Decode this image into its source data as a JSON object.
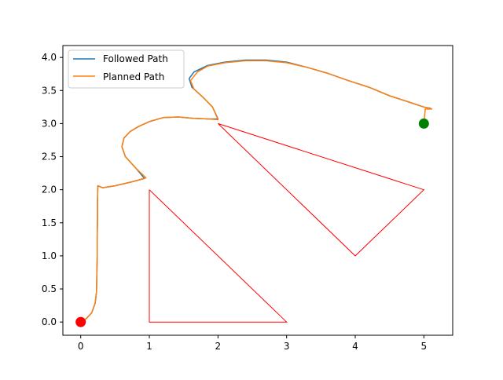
{
  "chart_data": {
    "type": "line",
    "title": "",
    "xlabel": "",
    "ylabel": "",
    "xlim": [
      -0.26,
      5.42
    ],
    "ylim": [
      -0.2,
      4.18
    ],
    "x_ticks": [
      0,
      1,
      2,
      3,
      4,
      5
    ],
    "y_ticks": [
      0.0,
      0.5,
      1.0,
      1.5,
      2.0,
      2.5,
      3.0,
      3.5,
      4.0
    ],
    "x_tick_labels": [
      "0",
      "1",
      "2",
      "3",
      "4",
      "5"
    ],
    "y_tick_labels": [
      "0.0",
      "0.5",
      "1.0",
      "1.5",
      "2.0",
      "2.5",
      "3.0",
      "3.5",
      "4.0"
    ],
    "grid": false,
    "legend": {
      "location": "upper-left",
      "entries": [
        "Followed Path",
        "Planned Path"
      ]
    },
    "series": [
      {
        "name": "Followed Path",
        "color": "#1f77b4",
        "points": [
          [
            0.0,
            0.0
          ],
          [
            0.08,
            0.05
          ],
          [
            0.16,
            0.14
          ],
          [
            0.21,
            0.28
          ],
          [
            0.23,
            0.45
          ],
          [
            0.235,
            0.7
          ],
          [
            0.24,
            1.0
          ],
          [
            0.24,
            1.3
          ],
          [
            0.245,
            1.6
          ],
          [
            0.245,
            1.85
          ],
          [
            0.25,
            2.06
          ],
          [
            0.32,
            2.03
          ],
          [
            0.5,
            2.06
          ],
          [
            0.75,
            2.12
          ],
          [
            0.93,
            2.17
          ],
          [
            0.8,
            2.33
          ],
          [
            0.65,
            2.5
          ],
          [
            0.6,
            2.65
          ],
          [
            0.63,
            2.78
          ],
          [
            0.72,
            2.88
          ],
          [
            0.85,
            2.96
          ],
          [
            1.0,
            3.03
          ],
          [
            1.2,
            3.09
          ],
          [
            1.42,
            3.1
          ],
          [
            1.65,
            3.08
          ],
          [
            1.85,
            3.07
          ],
          [
            2.0,
            3.07
          ],
          [
            1.92,
            3.25
          ],
          [
            1.78,
            3.4
          ],
          [
            1.62,
            3.55
          ],
          [
            1.58,
            3.68
          ],
          [
            1.65,
            3.78
          ],
          [
            1.85,
            3.88
          ],
          [
            2.1,
            3.93
          ],
          [
            2.4,
            3.96
          ],
          [
            2.7,
            3.96
          ],
          [
            3.0,
            3.93
          ],
          [
            3.3,
            3.85
          ],
          [
            3.6,
            3.76
          ],
          [
            3.9,
            3.65
          ],
          [
            4.2,
            3.55
          ],
          [
            4.5,
            3.42
          ],
          [
            4.8,
            3.32
          ],
          [
            5.0,
            3.25
          ],
          [
            5.1,
            3.23
          ]
        ]
      },
      {
        "name": "Planned Path",
        "color": "#ff7f0e",
        "points": [
          [
            0.0,
            0.0
          ],
          [
            0.08,
            0.05
          ],
          [
            0.16,
            0.14
          ],
          [
            0.21,
            0.28
          ],
          [
            0.23,
            0.45
          ],
          [
            0.235,
            0.7
          ],
          [
            0.24,
            1.0
          ],
          [
            0.24,
            1.3
          ],
          [
            0.245,
            1.6
          ],
          [
            0.245,
            1.85
          ],
          [
            0.25,
            2.06
          ],
          [
            0.32,
            2.03
          ],
          [
            0.5,
            2.06
          ],
          [
            0.75,
            2.12
          ],
          [
            0.95,
            2.18
          ],
          [
            0.8,
            2.33
          ],
          [
            0.65,
            2.5
          ],
          [
            0.6,
            2.65
          ],
          [
            0.63,
            2.78
          ],
          [
            0.72,
            2.88
          ],
          [
            0.85,
            2.96
          ],
          [
            1.0,
            3.03
          ],
          [
            1.2,
            3.09
          ],
          [
            1.42,
            3.1
          ],
          [
            1.65,
            3.08
          ],
          [
            1.85,
            3.07
          ],
          [
            2.0,
            3.06
          ],
          [
            1.92,
            3.25
          ],
          [
            1.78,
            3.4
          ],
          [
            1.65,
            3.52
          ],
          [
            1.6,
            3.65
          ],
          [
            1.7,
            3.78
          ],
          [
            1.85,
            3.87
          ],
          [
            2.1,
            3.92
          ],
          [
            2.4,
            3.95
          ],
          [
            2.7,
            3.95
          ],
          [
            3.0,
            3.92
          ],
          [
            3.3,
            3.85
          ],
          [
            3.6,
            3.76
          ],
          [
            3.9,
            3.65
          ],
          [
            4.2,
            3.55
          ],
          [
            4.5,
            3.42
          ],
          [
            4.8,
            3.32
          ],
          [
            5.0,
            3.25
          ],
          [
            5.12,
            3.22
          ]
        ]
      }
    ],
    "obstacles": [
      {
        "color": "#ff0000",
        "points": [
          [
            1,
            2
          ],
          [
            1,
            0
          ],
          [
            3,
            0
          ],
          [
            1,
            2
          ]
        ]
      },
      {
        "color": "#ff0000",
        "points": [
          [
            2,
            3
          ],
          [
            5,
            2
          ],
          [
            4,
            1
          ],
          [
            2,
            3
          ]
        ]
      }
    ],
    "markers": [
      {
        "kind": "start",
        "color": "#ff0000",
        "x": 0.0,
        "y": 0.0
      },
      {
        "kind": "goal",
        "color": "#008000",
        "x": 5.0,
        "y": 3.0
      }
    ],
    "goal_connector": [
      [
        5.0,
        3.0
      ],
      [
        5.02,
        3.22
      ],
      [
        5.12,
        3.22
      ]
    ]
  }
}
